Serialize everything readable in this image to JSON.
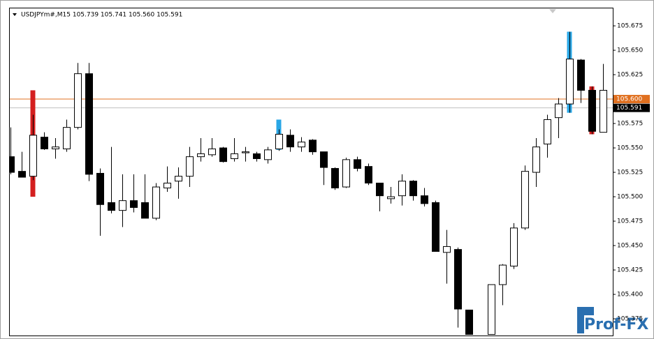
{
  "chart_data": {
    "type": "candlestick",
    "header": "USDJPYm#,M15  105.739 105.741 105.560 105.591",
    "watermark": "Prof-FX",
    "ylim": [
      105.3586,
      105.6929
    ],
    "yticks": [
      105.675,
      {
        "value": 105.65,
        "label": "105.650"
      },
      105.625,
      {
        "value": 105.6,
        "label": "105.600"
      },
      105.575,
      {
        "value": 105.55,
        "label": "105.550"
      },
      105.525,
      {
        "value": 105.5,
        "label": "105.500"
      },
      105.475,
      {
        "value": 105.45,
        "label": "105.450"
      },
      105.425,
      {
        "value": 105.4,
        "label": "105.400"
      },
      105.375
    ],
    "bull_color": "#ffffff",
    "bear_color": "#000000",
    "open": [
      105.541,
      105.526,
      105.521,
      105.561,
      105.549,
      105.549,
      105.571,
      105.626,
      105.524,
      105.494,
      105.486,
      105.496,
      105.494,
      105.478,
      105.509,
      105.516,
      105.521,
      105.541,
      105.543,
      105.55,
      105.539,
      105.545,
      105.544,
      105.538,
      105.549,
      105.563,
      105.551,
      105.558,
      105.546,
      105.529,
      105.51,
      105.538,
      105.531,
      105.514,
      105.498,
      105.501,
      105.516,
      105.501,
      105.494,
      105.443,
      105.446,
      105.384,
      null,
      105.359,
      105.41,
      105.429,
      105.468,
      105.525,
      105.554,
      105.581,
      105.595,
      105.64,
      105.609,
      105.566
    ],
    "high": [
      105.571,
      105.546,
      105.584,
      105.566,
      105.56,
      105.579,
      105.637,
      105.637,
      105.529,
      105.551,
      105.523,
      105.523,
      105.523,
      105.514,
      105.531,
      105.53,
      105.551,
      105.56,
      105.56,
      105.551,
      105.56,
      105.551,
      105.546,
      105.551,
      105.569,
      105.569,
      105.561,
      105.559,
      105.546,
      105.53,
      105.54,
      105.541,
      105.534,
      105.514,
      105.51,
      105.523,
      105.517,
      105.509,
      105.496,
      105.466,
      105.448,
      105.384,
      null,
      105.41,
      105.431,
      105.473,
      105.532,
      105.56,
      105.584,
      105.601,
      105.669,
      105.641,
      105.613,
      105.636
    ],
    "low": [
      105.523,
      105.52,
      105.517,
      105.548,
      105.539,
      105.546,
      105.569,
      105.516,
      105.46,
      105.483,
      105.469,
      105.484,
      105.478,
      105.476,
      105.505,
      105.498,
      105.51,
      105.536,
      105.541,
      105.535,
      105.536,
      105.536,
      105.536,
      105.534,
      105.547,
      105.546,
      105.546,
      105.543,
      105.512,
      105.507,
      105.509,
      105.526,
      105.512,
      105.485,
      105.493,
      105.491,
      105.496,
      105.49,
      105.444,
      105.411,
      105.366,
      105.359,
      null,
      105.359,
      105.389,
      105.426,
      105.466,
      105.51,
      105.54,
      105.56,
      105.586,
      105.596,
      105.564,
      105.566
    ],
    "close": [
      105.525,
      105.52,
      105.563,
      105.549,
      105.551,
      105.571,
      105.626,
      105.523,
      105.492,
      105.486,
      105.496,
      105.489,
      105.478,
      105.51,
      105.514,
      105.521,
      105.541,
      105.544,
      105.549,
      105.536,
      105.544,
      105.546,
      105.539,
      105.548,
      105.564,
      105.551,
      105.556,
      105.546,
      105.53,
      105.509,
      105.538,
      105.529,
      105.514,
      105.501,
      105.5,
      105.516,
      105.501,
      105.493,
      105.444,
      105.449,
      105.385,
      105.359,
      null,
      105.41,
      105.43,
      105.468,
      105.526,
      105.551,
      105.579,
      105.595,
      105.641,
      105.609,
      105.567,
      105.609
    ],
    "signal_top": [
      null,
      null,
      105.609,
      null,
      null,
      null,
      null,
      null,
      null,
      null,
      null,
      null,
      null,
      null,
      null,
      null,
      null,
      null,
      null,
      null,
      null,
      null,
      null,
      null,
      105.579,
      null,
      null,
      null,
      null,
      null,
      null,
      null,
      null,
      null,
      null,
      null,
      null,
      null,
      null,
      null,
      null,
      null,
      null,
      null,
      null,
      null,
      null,
      null,
      null,
      null,
      105.669,
      null,
      105.613,
      null
    ],
    "signal_bottom": [
      null,
      null,
      105.5,
      null,
      null,
      null,
      null,
      null,
      null,
      null,
      null,
      null,
      null,
      null,
      null,
      null,
      null,
      null,
      null,
      null,
      null,
      null,
      null,
      null,
      105.548,
      null,
      null,
      null,
      null,
      null,
      null,
      null,
      null,
      null,
      null,
      null,
      null,
      null,
      null,
      null,
      null,
      null,
      null,
      null,
      null,
      null,
      null,
      null,
      null,
      null,
      105.586,
      null,
      105.564,
      null
    ],
    "signal_colors": [
      null,
      null,
      "#d41f1f",
      null,
      null,
      null,
      null,
      null,
      null,
      null,
      null,
      null,
      null,
      null,
      null,
      null,
      null,
      null,
      null,
      null,
      null,
      null,
      null,
      null,
      "#2aa7e6",
      null,
      null,
      null,
      null,
      null,
      null,
      null,
      null,
      null,
      null,
      null,
      null,
      null,
      null,
      null,
      null,
      null,
      null,
      null,
      null,
      null,
      null,
      null,
      null,
      null,
      "#2aa7e6",
      null,
      "#d41f1f",
      null
    ],
    "price_lines": [
      {
        "value": 105.6,
        "label": "105.600",
        "color": "#e07020"
      },
      {
        "value": 105.591,
        "color": "#c0c0c0"
      }
    ]
  }
}
